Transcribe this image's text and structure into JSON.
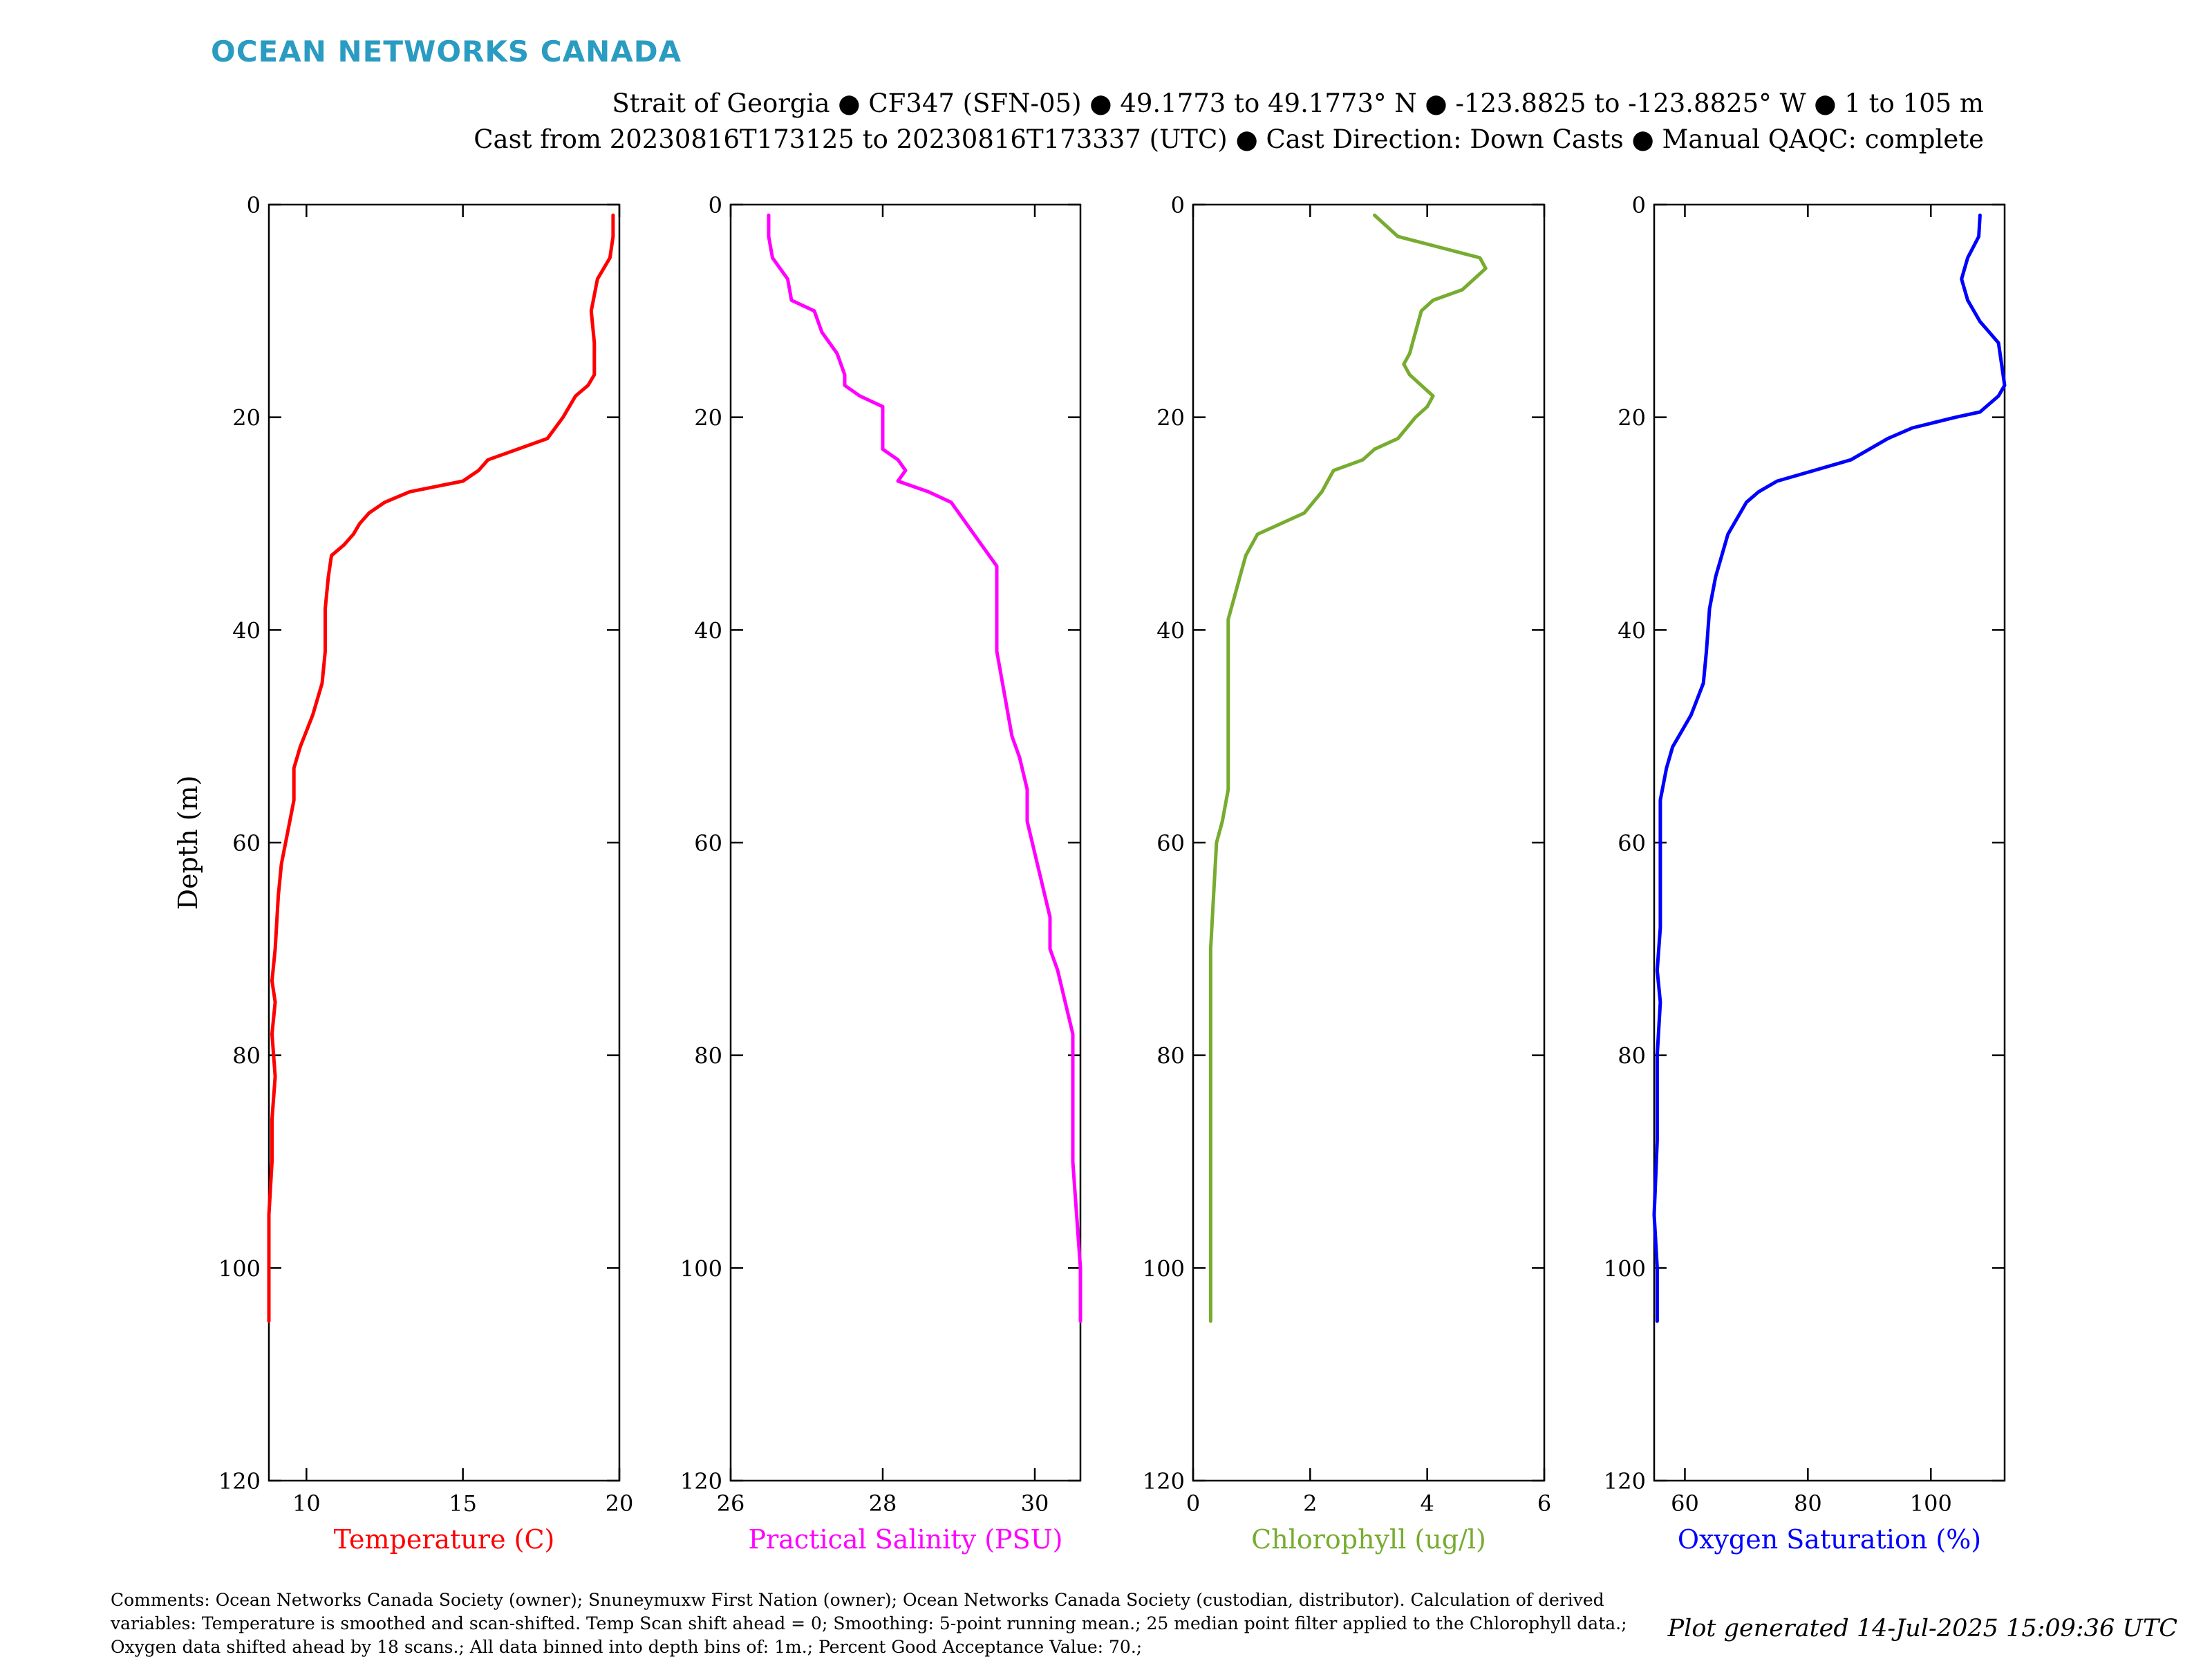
{
  "header": {
    "brand": "OCEAN NETWORKS CANADA",
    "title_line1": "Strait of Georgia ● CF347 (SFN-05) ● 49.1773 to 49.1773° N ● -123.8825 to -123.8825° W ● 1 to 105 m",
    "title_line2": "Cast from 20230816T173125 to 20230816T173337 (UTC) ● Cast Direction: Down Casts ● Manual QAQC: complete"
  },
  "footer": {
    "comments": "Comments: Ocean Networks Canada Society (owner); Snuneymuxw First Nation (owner); Ocean Networks Canada Society (custodian, distributor). Calculation of derived variables: Temperature is smoothed and scan-shifted. Temp Scan shift ahead = 0; Smoothing: 5-point running mean.; 25 median point filter applied to the Chlorophyll data.; Oxygen data shifted ahead by 18 scans.; All data binned into depth bins of: 1m.; Percent Good Acceptance Value: 70.;",
    "generated": "Plot generated 14-Jul-2025 15:09:36 UTC"
  },
  "chart_data": [
    {
      "type": "line",
      "title": "",
      "xlabel": "Temperature (C)",
      "ylabel": "Depth (m)",
      "color": "#ff0000",
      "xlim": [
        8.8,
        20
      ],
      "ylim": [
        0,
        120
      ],
      "y_inverted": true,
      "xticks": [
        10,
        15,
        20
      ],
      "yticks": [
        0,
        20,
        40,
        60,
        80,
        100,
        120
      ],
      "points": [
        [
          19.8,
          1
        ],
        [
          19.8,
          3
        ],
        [
          19.7,
          5
        ],
        [
          19.3,
          7
        ],
        [
          19.1,
          10
        ],
        [
          19.2,
          13
        ],
        [
          19.2,
          16
        ],
        [
          19.0,
          17
        ],
        [
          18.6,
          18
        ],
        [
          18.2,
          20
        ],
        [
          17.7,
          22
        ],
        [
          15.8,
          24
        ],
        [
          15.5,
          25
        ],
        [
          15.0,
          26
        ],
        [
          13.3,
          27
        ],
        [
          12.5,
          28
        ],
        [
          12.0,
          29
        ],
        [
          11.7,
          30
        ],
        [
          11.5,
          31
        ],
        [
          11.2,
          32
        ],
        [
          10.8,
          33
        ],
        [
          10.7,
          35
        ],
        [
          10.6,
          38
        ],
        [
          10.6,
          42
        ],
        [
          10.5,
          45
        ],
        [
          10.2,
          48
        ],
        [
          9.8,
          51
        ],
        [
          9.6,
          53
        ],
        [
          9.6,
          56
        ],
        [
          9.4,
          59
        ],
        [
          9.2,
          62
        ],
        [
          9.1,
          65
        ],
        [
          9.0,
          70
        ],
        [
          8.9,
          73
        ],
        [
          9.0,
          75
        ],
        [
          8.9,
          78
        ],
        [
          9.0,
          82
        ],
        [
          8.9,
          86
        ],
        [
          8.9,
          90
        ],
        [
          8.8,
          95
        ],
        [
          8.8,
          100
        ],
        [
          8.8,
          105
        ]
      ]
    },
    {
      "type": "line",
      "title": "",
      "xlabel": "Practical Salinity (PSU)",
      "ylabel": "",
      "color": "#ff00ff",
      "xlim": [
        26,
        30.6
      ],
      "ylim": [
        0,
        120
      ],
      "y_inverted": true,
      "xticks": [
        26,
        28,
        30
      ],
      "yticks": [
        0,
        20,
        40,
        60,
        80,
        100,
        120
      ],
      "points": [
        [
          26.5,
          1
        ],
        [
          26.5,
          3
        ],
        [
          26.55,
          5
        ],
        [
          26.65,
          6
        ],
        [
          26.75,
          7
        ],
        [
          26.8,
          9
        ],
        [
          27.1,
          10
        ],
        [
          27.2,
          12
        ],
        [
          27.3,
          13
        ],
        [
          27.4,
          14
        ],
        [
          27.5,
          16
        ],
        [
          27.5,
          17
        ],
        [
          27.7,
          18
        ],
        [
          28.0,
          19
        ],
        [
          28.0,
          21
        ],
        [
          28.0,
          23
        ],
        [
          28.2,
          24
        ],
        [
          28.3,
          25
        ],
        [
          28.2,
          26
        ],
        [
          28.6,
          27
        ],
        [
          28.9,
          28
        ],
        [
          29.0,
          29
        ],
        [
          29.2,
          31
        ],
        [
          29.3,
          32
        ],
        [
          29.5,
          34
        ],
        [
          29.5,
          38
        ],
        [
          29.5,
          42
        ],
        [
          29.6,
          46
        ],
        [
          29.7,
          50
        ],
        [
          29.8,
          52
        ],
        [
          29.9,
          55
        ],
        [
          29.9,
          58
        ],
        [
          30.0,
          61
        ],
        [
          30.1,
          64
        ],
        [
          30.2,
          67
        ],
        [
          30.2,
          70
        ],
        [
          30.3,
          72
        ],
        [
          30.4,
          75
        ],
        [
          30.5,
          78
        ],
        [
          30.5,
          85
        ],
        [
          30.5,
          90
        ],
        [
          30.6,
          100
        ],
        [
          30.6,
          105
        ]
      ]
    },
    {
      "type": "line",
      "title": "",
      "xlabel": "Chlorophyll (ug/l)",
      "ylabel": "",
      "color": "#77ac30",
      "xlim": [
        0,
        6
      ],
      "ylim": [
        0,
        120
      ],
      "y_inverted": true,
      "xticks": [
        0,
        2,
        4,
        6
      ],
      "yticks": [
        0,
        20,
        40,
        60,
        80,
        100,
        120
      ],
      "points": [
        [
          3.1,
          1
        ],
        [
          3.5,
          3
        ],
        [
          4.2,
          4
        ],
        [
          4.9,
          5
        ],
        [
          5.0,
          6
        ],
        [
          4.6,
          8
        ],
        [
          4.1,
          9
        ],
        [
          3.9,
          10
        ],
        [
          3.8,
          12
        ],
        [
          3.7,
          14
        ],
        [
          3.6,
          15
        ],
        [
          3.7,
          16
        ],
        [
          3.9,
          17
        ],
        [
          4.1,
          18
        ],
        [
          4.0,
          19
        ],
        [
          3.8,
          20
        ],
        [
          3.5,
          22
        ],
        [
          3.1,
          23
        ],
        [
          2.9,
          24
        ],
        [
          2.4,
          25
        ],
        [
          2.3,
          26
        ],
        [
          2.2,
          27
        ],
        [
          1.9,
          29
        ],
        [
          1.5,
          30
        ],
        [
          1.1,
          31
        ],
        [
          0.9,
          33
        ],
        [
          0.8,
          35
        ],
        [
          0.7,
          37
        ],
        [
          0.6,
          39
        ],
        [
          0.6,
          42
        ],
        [
          0.6,
          50
        ],
        [
          0.6,
          55
        ],
        [
          0.5,
          58
        ],
        [
          0.4,
          60
        ],
        [
          0.35,
          65
        ],
        [
          0.3,
          70
        ],
        [
          0.3,
          80
        ],
        [
          0.3,
          90
        ],
        [
          0.3,
          100
        ],
        [
          0.3,
          105
        ]
      ]
    },
    {
      "type": "line",
      "title": "",
      "xlabel": "Oxygen Saturation (%)",
      "ylabel": "",
      "color": "#0000ff",
      "xlim": [
        55,
        112
      ],
      "ylim": [
        0,
        120
      ],
      "y_inverted": true,
      "xticks": [
        60,
        80,
        100
      ],
      "yticks": [
        0,
        20,
        40,
        60,
        80,
        100,
        120
      ],
      "points": [
        [
          108,
          1
        ],
        [
          107.8,
          3
        ],
        [
          106,
          5
        ],
        [
          105,
          7
        ],
        [
          106,
          9
        ],
        [
          108,
          11
        ],
        [
          109.5,
          12
        ],
        [
          111,
          13
        ],
        [
          111.5,
          15
        ],
        [
          112,
          17
        ],
        [
          111,
          18
        ],
        [
          108,
          19.5
        ],
        [
          104,
          20
        ],
        [
          97,
          21
        ],
        [
          93,
          22
        ],
        [
          90,
          23
        ],
        [
          87,
          24
        ],
        [
          81,
          25
        ],
        [
          75,
          26
        ],
        [
          72,
          27
        ],
        [
          70,
          28
        ],
        [
          68,
          30
        ],
        [
          67,
          31
        ],
        [
          66,
          33
        ],
        [
          65,
          35
        ],
        [
          64,
          38
        ],
        [
          63.5,
          42
        ],
        [
          63,
          45
        ],
        [
          61,
          48
        ],
        [
          58,
          51
        ],
        [
          57,
          53
        ],
        [
          56,
          56
        ],
        [
          56,
          62
        ],
        [
          56,
          68
        ],
        [
          55.5,
          72
        ],
        [
          56,
          75
        ],
        [
          55.5,
          80
        ],
        [
          55.5,
          88
        ],
        [
          55,
          95
        ],
        [
          55.5,
          100
        ],
        [
          55.5,
          105
        ]
      ]
    }
  ]
}
